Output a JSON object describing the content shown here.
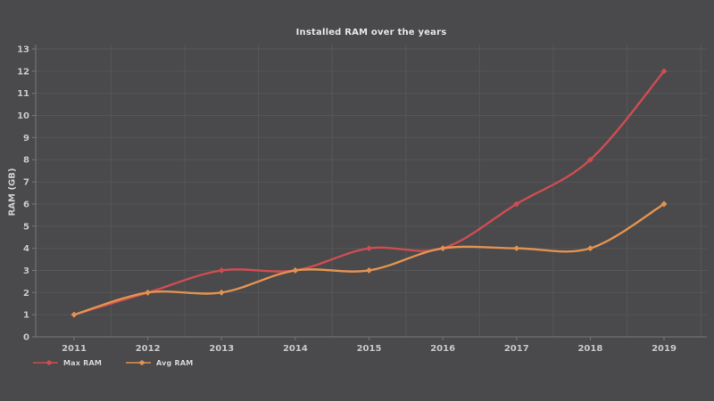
{
  "title": "Installed RAM over the years",
  "ylabel": "RAM (GB)",
  "colors": {
    "background": "#4a4a4c",
    "grid": "#565658",
    "axis": "#78787b",
    "tick_text": "#c8c7c9",
    "title_text": "#e4e3e5",
    "legend_text": "#d6d3d1",
    "max_ram": "#cd4d52",
    "avg_ram": "#e29250"
  },
  "chart_data": {
    "type": "line",
    "x": [
      "2011",
      "2012",
      "2013",
      "2014",
      "2015",
      "2016",
      "2017",
      "2018",
      "2019"
    ],
    "series": [
      {
        "name": "Max RAM",
        "color": "#cd4d52",
        "values": [
          1,
          2,
          3,
          3,
          4,
          4,
          6,
          8,
          12
        ]
      },
      {
        "name": "Avg RAM",
        "color": "#e29250",
        "values": [
          1,
          2,
          2,
          3,
          3,
          4,
          4,
          4,
          6
        ]
      }
    ],
    "title": "Installed RAM over the years",
    "xlabel": "",
    "ylabel": "RAM (GB)",
    "ylim": [
      0,
      13
    ],
    "yticks": [
      0,
      1,
      2,
      3,
      4,
      5,
      6,
      7,
      8,
      9,
      10,
      11,
      12,
      13
    ],
    "grid": true,
    "smooth": true,
    "legend_position": "bottom-left"
  }
}
